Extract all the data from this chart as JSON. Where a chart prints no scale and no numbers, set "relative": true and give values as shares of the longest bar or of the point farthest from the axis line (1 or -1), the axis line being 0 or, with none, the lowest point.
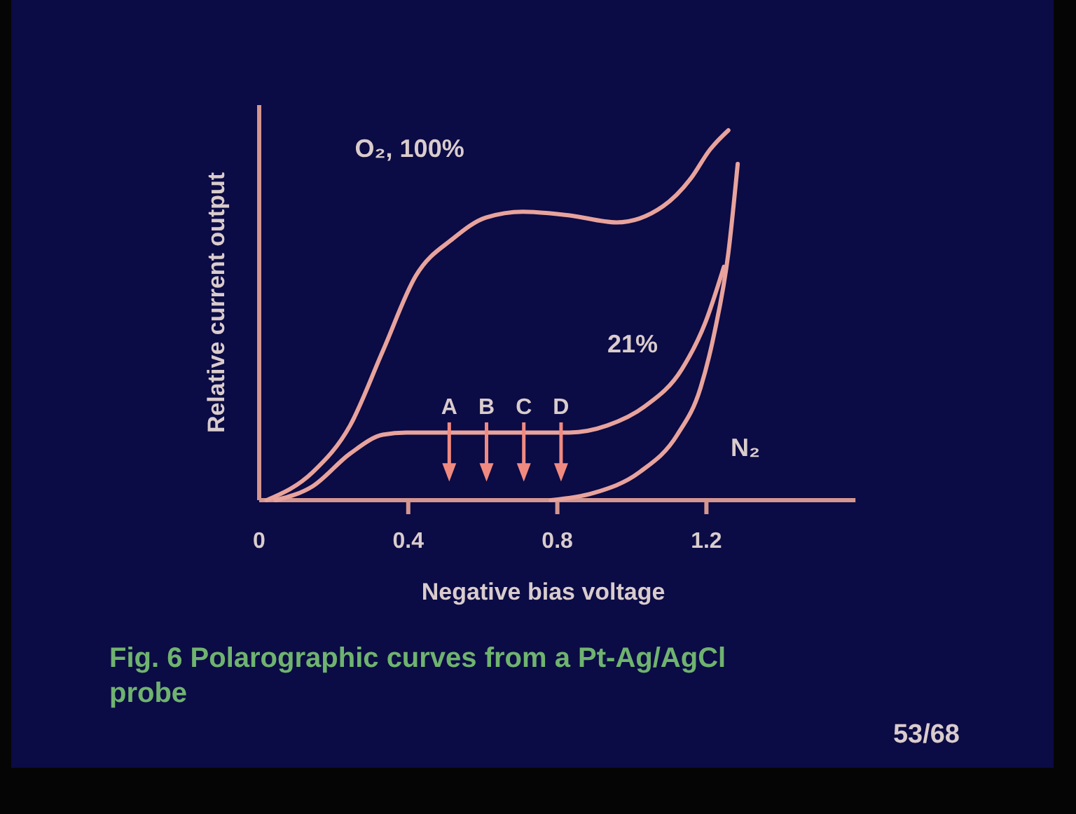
{
  "chart_data": {
    "type": "line",
    "relative": true,
    "xlabel": "Negative bias voltage",
    "ylabel": "Relative current output",
    "xlim": [
      0,
      1.6
    ],
    "xticks": [
      0,
      0.4,
      0.8,
      1.2
    ],
    "legend": false,
    "grid": false,
    "marker": "none",
    "line_style": "solid",
    "series": [
      {
        "name": "O₂, 100%",
        "color": "#e8a39c",
        "x": [
          0.02,
          0.144,
          0.244,
          0.332,
          0.42,
          0.52,
          0.608,
          0.708,
          0.833,
          0.959,
          1.084,
          1.159,
          1.209,
          1.259
        ],
        "values": [
          0,
          0.076,
          0.202,
          0.404,
          0.606,
          0.707,
          0.764,
          0.78,
          0.77,
          0.751,
          0.795,
          0.871,
          0.947,
          1
        ]
      },
      {
        "name": "21%",
        "color": "#e8a39c",
        "x": [
          0.044,
          0.144,
          0.244,
          0.332,
          0.395,
          0.833,
          0.934,
          1.034,
          1.134,
          1.197,
          1.247
        ],
        "values": [
          0,
          0.038,
          0.126,
          0.177,
          0.183,
          0.183,
          0.202,
          0.253,
          0.354,
          0.48,
          0.631
        ]
      },
      {
        "name": "N₂",
        "color": "#e8a39c",
        "x": [
          0.783,
          0.896,
          1.021,
          1.122,
          1.184,
          1.222,
          1.259,
          1.284
        ],
        "values": [
          0,
          0.019,
          0.076,
          0.177,
          0.303,
          0.455,
          0.669,
          0.909
        ]
      }
    ],
    "annotations": [
      {
        "text": "A",
        "x": 0.51,
        "y": 0.18
      },
      {
        "text": "B",
        "x": 0.61,
        "y": 0.18
      },
      {
        "text": "C",
        "x": 0.71,
        "y": 0.18
      },
      {
        "text": "D",
        "x": 0.81,
        "y": 0.18
      },
      "Fig. 6  Polarographic curves from a Pt-Ag/AgCl probe",
      "53/68"
    ]
  }
}
